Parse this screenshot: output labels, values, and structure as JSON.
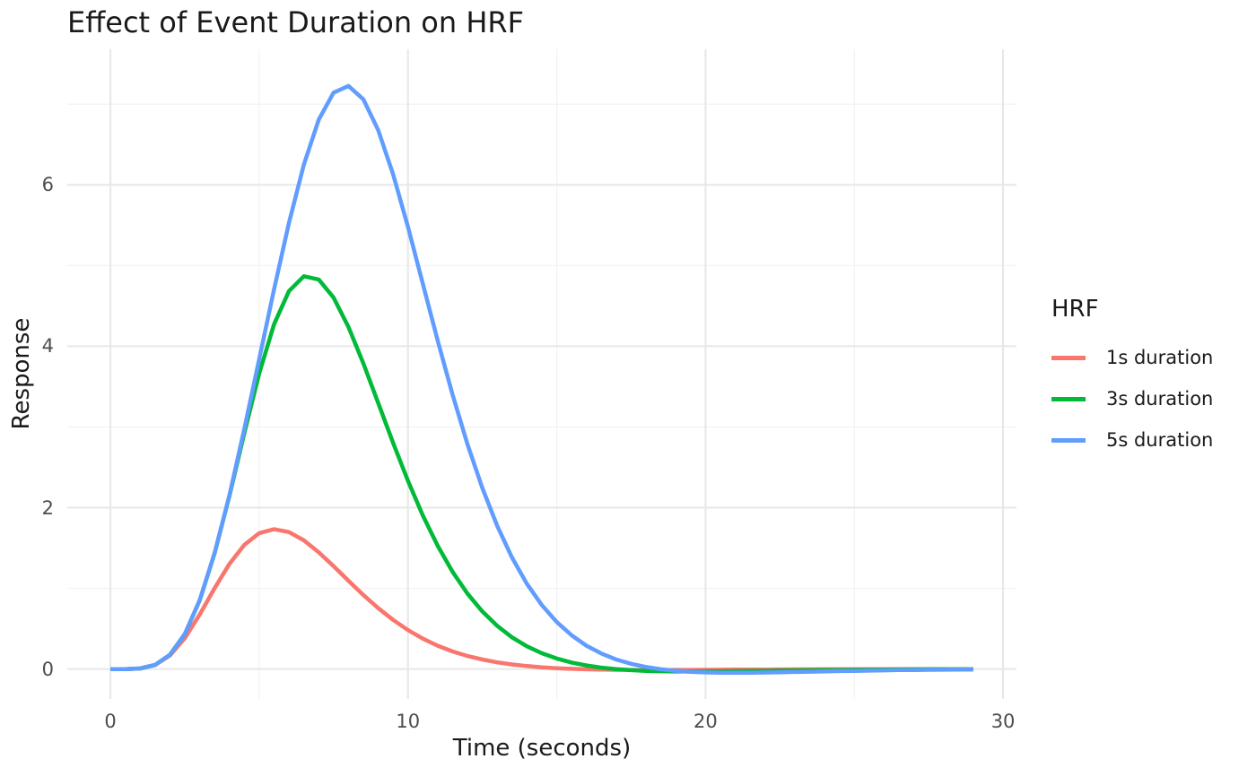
{
  "colors": {
    "background": "#FFFFFF",
    "grid_major": "#E7E7E7",
    "grid_minor": "#F2F2F2",
    "tick_text": "#4D4D4D",
    "text": "#1A1A1A"
  },
  "legend": {
    "title": "HRF",
    "position": "right",
    "entries": [
      {
        "label": "1s duration",
        "color": "#F8766D"
      },
      {
        "label": "3s duration",
        "color": "#00BA38"
      },
      {
        "label": "5s duration",
        "color": "#619CFF"
      }
    ]
  },
  "chart_data": {
    "type": "line",
    "title": "Effect of Event Duration on HRF",
    "xlabel": "Time (seconds)",
    "ylabel": "Response",
    "xlim": [
      -1.45,
      30.45
    ],
    "ylim": [
      -0.37,
      7.68
    ],
    "x_ticks": [
      0,
      10,
      20,
      30
    ],
    "y_ticks": [
      0,
      2,
      4,
      6
    ],
    "x_minor_ticks": [
      5,
      15,
      25
    ],
    "y_minor_ticks": [
      1,
      3,
      5,
      7
    ],
    "grid": true,
    "legend_position": "right",
    "x": [
      0,
      0.5,
      1,
      1.5,
      2,
      2.5,
      3,
      3.5,
      4,
      4.5,
      5,
      5.5,
      6,
      6.5,
      7,
      7.5,
      8,
      8.5,
      9,
      9.5,
      10,
      10.5,
      11,
      11.5,
      12,
      12.5,
      13,
      13.5,
      14,
      14.5,
      15,
      15.5,
      16,
      16.5,
      17,
      17.5,
      18,
      18.5,
      19,
      19.5,
      20,
      20.5,
      21,
      21.5,
      22,
      22.5,
      23,
      23.5,
      24,
      24.5,
      25,
      25.5,
      26,
      26.5,
      27,
      27.5,
      28,
      28.5,
      29
    ],
    "series": [
      {
        "name": "1s duration",
        "color": "#F8766D",
        "values": [
          0,
          0,
          0.008,
          0.051,
          0.168,
          0.383,
          0.676,
          1.002,
          1.304,
          1.539,
          1.684,
          1.733,
          1.697,
          1.595,
          1.447,
          1.275,
          1.094,
          0.918,
          0.755,
          0.609,
          0.483,
          0.377,
          0.29,
          0.219,
          0.162,
          0.118,
          0.083,
          0.057,
          0.037,
          0.022,
          0.011,
          0.003,
          -0.003,
          -0.006,
          -0.009,
          -0.01,
          -0.011,
          -0.011,
          -0.01,
          -0.01,
          -0.009,
          -0.008,
          -0.007,
          -0.006,
          -0.006,
          -0.005,
          -0.004,
          -0.004,
          -0.003,
          -0.003,
          -0.002,
          -0.002,
          -0.002,
          -0.001,
          -0.001,
          -0.001,
          -0.001,
          -0.001,
          0
        ]
      },
      {
        "name": "3s duration",
        "color": "#00BA38",
        "values": [
          0,
          0,
          0.008,
          0.051,
          0.177,
          0.434,
          0.853,
          1.435,
          2.148,
          2.923,
          3.663,
          4.273,
          4.684,
          4.867,
          4.828,
          4.603,
          4.239,
          3.788,
          3.296,
          2.802,
          2.332,
          1.904,
          1.528,
          1.205,
          0.935,
          0.714,
          0.535,
          0.393,
          0.282,
          0.196,
          0.131,
          0.081,
          0.045,
          0.018,
          -0.001,
          -0.014,
          -0.022,
          -0.027,
          -0.03,
          -0.03,
          -0.03,
          -0.028,
          -0.026,
          -0.024,
          -0.022,
          -0.019,
          -0.017,
          -0.015,
          -0.012,
          -0.011,
          -0.009,
          -0.008,
          -0.006,
          -0.005,
          -0.004,
          -0.003,
          -0.003,
          -0.002,
          -0.002
        ]
      },
      {
        "name": "5s duration",
        "color": "#619CFF",
        "values": [
          0,
          0,
          0.008,
          0.051,
          0.177,
          0.434,
          0.853,
          1.436,
          2.157,
          2.975,
          3.84,
          4.707,
          5.529,
          6.251,
          6.808,
          7.143,
          7.226,
          7.06,
          6.677,
          6.13,
          5.477,
          4.774,
          4.069,
          3.398,
          2.784,
          2.241,
          1.773,
          1.38,
          1.055,
          0.792,
          0.583,
          0.418,
          0.29,
          0.193,
          0.119,
          0.065,
          0.026,
          -0.002,
          -0.021,
          -0.034,
          -0.041,
          -0.045,
          -0.046,
          -0.045,
          -0.042,
          -0.039,
          -0.036,
          -0.032,
          -0.029,
          -0.025,
          -0.022,
          -0.019,
          -0.016,
          -0.013,
          -0.011,
          -0.009,
          -0.008,
          -0.006,
          -0.005
        ]
      }
    ]
  }
}
